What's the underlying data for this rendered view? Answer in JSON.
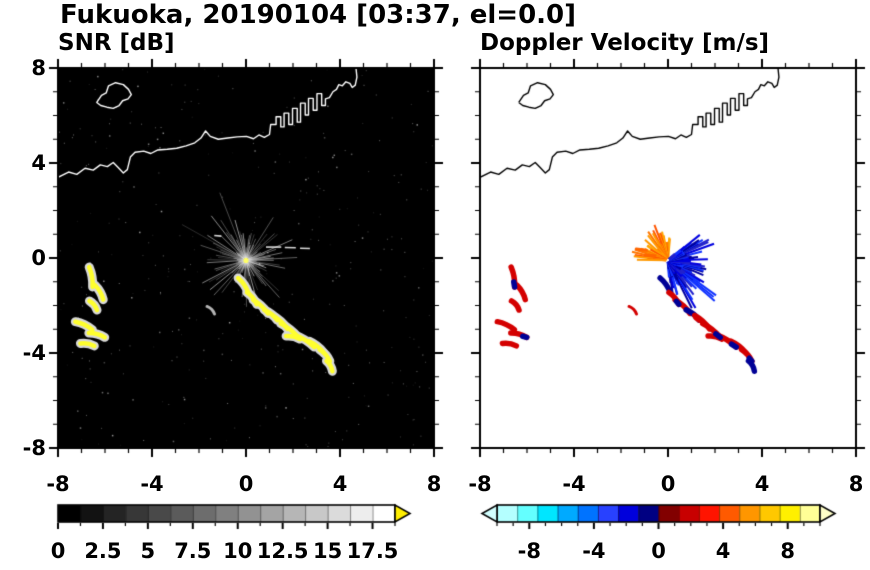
{
  "header": {
    "title": "Fukuoka, 20190104 [03:37, el=0.0]"
  },
  "panels": {
    "snr": {
      "label": "SNR [dB]",
      "bg": "#000000",
      "coast_color": "#ffffff",
      "x_tick_labels": [
        "-8",
        "-4",
        "0",
        "4",
        "8"
      ],
      "y_tick_labels": [
        "8",
        "4",
        "0",
        "-4",
        "-8"
      ],
      "colorbar": {
        "labels": [
          "0",
          "2.5",
          "5",
          "7.5",
          "10",
          "12.5",
          "15",
          "17.5"
        ],
        "label_values": [
          0,
          2.5,
          5,
          7.5,
          10,
          12.5,
          15,
          17.5
        ],
        "range": [
          0,
          18.75
        ],
        "minor_step": 1.25,
        "unit": "dB",
        "segment_colors": [
          "#000000",
          "#121212",
          "#242424",
          "#373737",
          "#494949",
          "#5b5b5b",
          "#6d6d6d",
          "#808080",
          "#929292",
          "#a4a4a4",
          "#b6b6b6",
          "#c8c8c8",
          "#dbdbdb",
          "#ededed",
          "#ffffff"
        ],
        "over_arrow_color": "#ffee00"
      }
    },
    "velocity": {
      "label": "Doppler Velocity [m/s]",
      "bg": "#ffffff",
      "coast_color": "#000000",
      "x_tick_labels": [
        "-8",
        "-4",
        "0",
        "4",
        "8"
      ],
      "colorbar": {
        "labels": [
          "-8",
          "-4",
          "0",
          "4",
          "8"
        ],
        "label_values": [
          -8,
          -4,
          0,
          4,
          8
        ],
        "range": [
          -10,
          10
        ],
        "minor_step": 1,
        "unit": "m/s",
        "segment_colors": [
          "#b4ffff",
          "#64ffff",
          "#00e6ff",
          "#00aaff",
          "#0073ff",
          "#2841ff",
          "#0000dc",
          "#000082",
          "#820000",
          "#c80000",
          "#ff1400",
          "#ff5a00",
          "#ff9600",
          "#ffc800",
          "#fff000",
          "#ffff96"
        ],
        "under_arrow_color": "#d2ffff",
        "over_arrow_color": "#ffffc8"
      }
    }
  },
  "chart_data": {
    "type": "heatmap",
    "title": "Fukuoka, 20190104 [03:37, el=0.0]",
    "site": "Fukuoka",
    "date": "20190104",
    "time": "03:37",
    "elevation_deg": 0.0,
    "panel_titles": [
      "SNR [dB]",
      "Doppler Velocity [m/s]"
    ],
    "xlim": [
      -8,
      8
    ],
    "ylim": [
      -8,
      8
    ],
    "x_major_ticks": [
      -8,
      -4,
      0,
      4,
      8
    ],
    "y_major_ticks": [
      -8,
      -4,
      0,
      4,
      8
    ],
    "minor_tick_step": 1,
    "colorbar_ranges": {
      "snr_db": [
        0,
        18.75
      ],
      "velocity_ms": [
        -10,
        10
      ]
    },
    "radar_center": [
      0,
      -0.1
    ],
    "colors": {
      "snr_echo_core": "#ffff2e",
      "snr_echo_fringe": "#d8d8d8",
      "vel_positive": "#d40000",
      "vel_negative": "#000096"
    },
    "coastline": {
      "main": [
        [
          -8,
          3.4
        ],
        [
          -7.55,
          3.62
        ],
        [
          -7.2,
          3.52
        ],
        [
          -6.85,
          3.78
        ],
        [
          -6.5,
          3.7
        ],
        [
          -6.2,
          3.92
        ],
        [
          -5.9,
          3.85
        ],
        [
          -5.65,
          4.02
        ],
        [
          -5.45,
          3.82
        ],
        [
          -5.22,
          3.58
        ],
        [
          -5.05,
          3.72
        ],
        [
          -4.92,
          4.25
        ],
        [
          -4.72,
          4.45
        ],
        [
          -4.35,
          4.5
        ],
        [
          -4.05,
          4.4
        ],
        [
          -3.75,
          4.55
        ],
        [
          -3.35,
          4.58
        ],
        [
          -2.95,
          4.62
        ],
        [
          -2.55,
          4.72
        ],
        [
          -2.18,
          4.85
        ],
        [
          -1.92,
          5.05
        ],
        [
          -1.72,
          5.35
        ],
        [
          -1.52,
          5.12
        ],
        [
          -1.18,
          5.0
        ],
        [
          -0.78,
          5.05
        ],
        [
          -0.38,
          5.1
        ],
        [
          0.02,
          5.12
        ],
        [
          0.32,
          5.02
        ],
        [
          0.55,
          5.18
        ],
        [
          0.78,
          5.08
        ],
        [
          1.0,
          5.2
        ],
        [
          1.05,
          5.62
        ],
        [
          1.28,
          5.62
        ],
        [
          1.28,
          5.95
        ],
        [
          1.48,
          5.95
        ],
        [
          1.48,
          5.52
        ],
        [
          1.62,
          5.52
        ],
        [
          1.62,
          6.1
        ],
        [
          1.82,
          6.1
        ],
        [
          1.82,
          5.62
        ],
        [
          1.98,
          5.62
        ],
        [
          1.98,
          6.3
        ],
        [
          2.18,
          6.3
        ],
        [
          2.18,
          5.72
        ],
        [
          2.32,
          5.72
        ],
        [
          2.32,
          6.52
        ],
        [
          2.52,
          6.52
        ],
        [
          2.52,
          6.02
        ],
        [
          2.66,
          6.02
        ],
        [
          2.66,
          6.72
        ],
        [
          2.86,
          6.72
        ],
        [
          2.86,
          6.22
        ],
        [
          3.02,
          6.22
        ],
        [
          3.02,
          6.92
        ],
        [
          3.22,
          6.92
        ],
        [
          3.22,
          6.42
        ],
        [
          3.38,
          6.42
        ],
        [
          3.38,
          6.7
        ],
        [
          3.55,
          6.75
        ],
        [
          3.7,
          7.0
        ],
        [
          3.85,
          7.1
        ],
        [
          3.95,
          7.3
        ],
        [
          4.1,
          7.25
        ],
        [
          4.25,
          7.42
        ],
        [
          4.42,
          7.35
        ],
        [
          4.52,
          7.18
        ],
        [
          4.65,
          7.28
        ],
        [
          4.72,
          7.62
        ],
        [
          4.68,
          8.0
        ]
      ],
      "island": [
        [
          -6.35,
          6.55
        ],
        [
          -6.15,
          6.85
        ],
        [
          -5.95,
          6.95
        ],
        [
          -5.85,
          7.25
        ],
        [
          -5.55,
          7.38
        ],
        [
          -5.22,
          7.3
        ],
        [
          -5.0,
          7.1
        ],
        [
          -4.88,
          6.88
        ],
        [
          -5.02,
          6.7
        ],
        [
          -5.25,
          6.62
        ],
        [
          -5.4,
          6.42
        ],
        [
          -5.65,
          6.3
        ],
        [
          -5.92,
          6.35
        ],
        [
          -6.18,
          6.42
        ],
        [
          -6.35,
          6.55
        ]
      ]
    },
    "echoes": {
      "chain": [
        {
          "c": [
            -0.12,
            -1.15
          ],
          "len": 0.75,
          "rot": -55,
          "v": "navy"
        },
        {
          "c": [
            0.25,
            -1.7
          ],
          "len": 0.65,
          "rot": -50,
          "v": "red",
          "t": "navy"
        },
        {
          "c": [
            0.62,
            -2.05
          ],
          "len": 0.85,
          "rot": -42,
          "v": "red"
        },
        {
          "c": [
            1.05,
            -2.4
          ],
          "len": 0.7,
          "rot": -38,
          "v": "navy",
          "t": "red"
        },
        {
          "c": [
            1.45,
            -2.7
          ],
          "len": 0.85,
          "rot": -42,
          "v": "red"
        },
        {
          "c": [
            1.85,
            -3.05
          ],
          "len": 0.95,
          "rot": -38,
          "v": "red",
          "t": "navy"
        },
        {
          "c": [
            2.0,
            -3.35
          ],
          "len": 0.6,
          "rot": -12,
          "v": "red"
        },
        {
          "c": [
            2.5,
            -3.5
          ],
          "len": 0.95,
          "rot": -32,
          "v": "red",
          "t": "navy"
        },
        {
          "c": [
            3.0,
            -3.75
          ],
          "len": 0.8,
          "rot": -38,
          "v": "red"
        },
        {
          "c": [
            3.35,
            -4.1
          ],
          "len": 0.65,
          "rot": -48,
          "v": "red",
          "t": "navy"
        },
        {
          "c": [
            3.55,
            -4.55
          ],
          "len": 0.5,
          "rot": -60,
          "v": "navy"
        }
      ],
      "sw_cluster": [
        {
          "c": [
            -6.6,
            -0.8
          ],
          "len": 0.85,
          "rot": -80,
          "v": "red",
          "t": "navy"
        },
        {
          "c": [
            -6.25,
            -1.45
          ],
          "len": 0.7,
          "rot": -60,
          "v": "red"
        },
        {
          "c": [
            -6.5,
            -2.0
          ],
          "len": 0.5,
          "rot": -50,
          "v": "red"
        },
        {
          "c": [
            -6.9,
            -2.85
          ],
          "len": 0.8,
          "rot": -25,
          "v": "red"
        },
        {
          "c": [
            -6.35,
            -3.25
          ],
          "len": 0.7,
          "rot": -15,
          "v": "red",
          "t": "navy"
        },
        {
          "c": [
            -6.75,
            -3.65
          ],
          "len": 0.6,
          "rot": -10,
          "v": "red"
        }
      ],
      "isolated": [
        {
          "c": [
            -1.5,
            -2.2
          ],
          "len": 0.45,
          "rot": -45,
          "v": "red"
        }
      ]
    },
    "clutter": {
      "snr_streaks": {
        "angle_range": [
          0,
          360
        ],
        "max_r": 2.3
      },
      "bright_dashes": [
        [
          [
            0.85,
            0.46
          ],
          [
            1.5,
            0.46
          ]
        ],
        [
          [
            1.65,
            0.44
          ],
          [
            2.12,
            0.43
          ]
        ],
        [
          [
            2.3,
            0.41
          ],
          [
            2.72,
            0.4
          ]
        ],
        [
          [
            -1.35,
            0.95
          ],
          [
            -1.05,
            0.92
          ]
        ]
      ],
      "orange_fan": {
        "angle_range": [
          85,
          180
        ],
        "max_r": 1.7,
        "colors": [
          "#ff7700",
          "#ff9900",
          "#ff5500",
          "#ffaa00"
        ]
      },
      "blue_fan": {
        "angle_range": [
          -85,
          42
        ],
        "max_r": 2.1,
        "colors": [
          "#0000e0",
          "#1133ff",
          "#0000a0",
          "#2222cc"
        ]
      },
      "orange_dashes": [
        [
          [
            -1.35,
            0.38
          ],
          [
            -0.92,
            0.33
          ]
        ],
        [
          [
            -0.98,
            0.12
          ],
          [
            -0.55,
            0.1
          ]
        ]
      ]
    }
  }
}
